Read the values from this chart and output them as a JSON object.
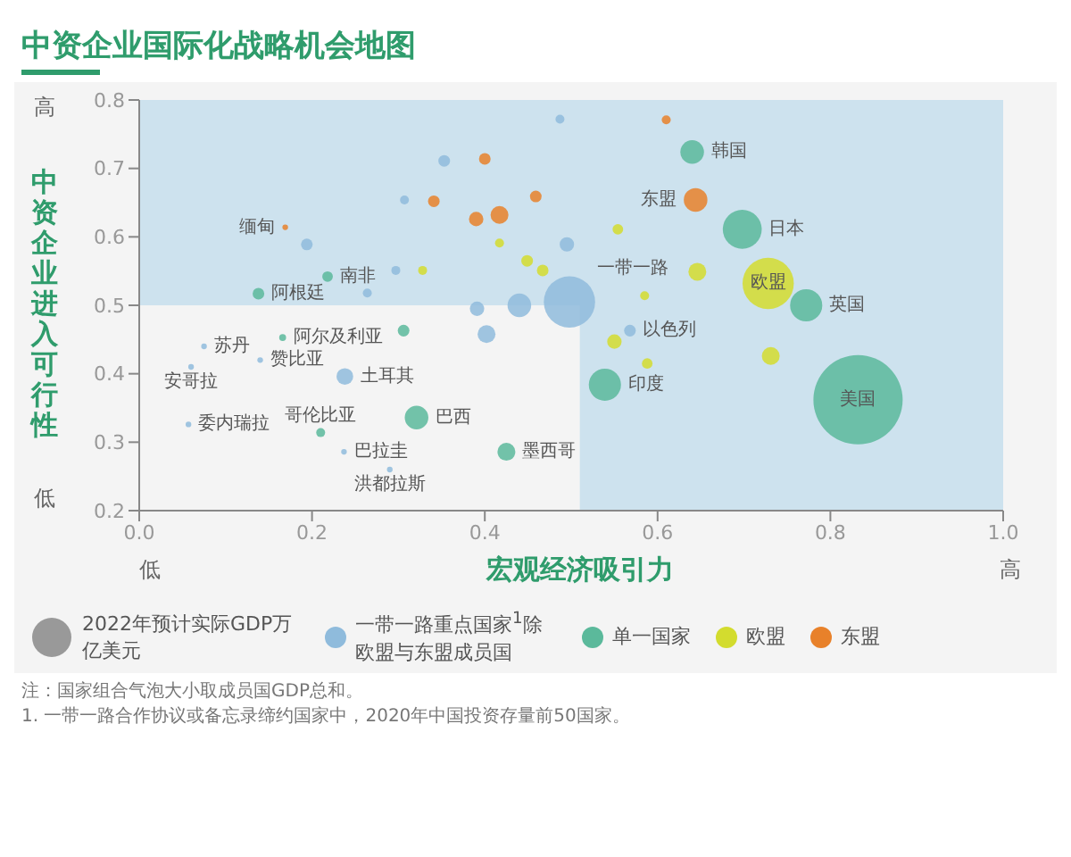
{
  "chart_data": {
    "type": "bubble",
    "title": "中资企业国际化战略机会地图",
    "xlabel": "宏观经济吸引力",
    "ylabel": "中资企业进入可行性",
    "legend_title": "2022年预计实际GDP万亿美元",
    "legend": "bottom",
    "xlim": [
      0,
      1
    ],
    "xticks": [
      {
        "value": 0,
        "label": "0.0"
      },
      0.2,
      0.4,
      0.6,
      0.8,
      {
        "value": 1,
        "label": "1.0"
      }
    ],
    "ylim": [
      0.2,
      0.8
    ],
    "yticks": [
      0.2,
      0.3,
      0.4,
      0.5,
      0.6,
      0.7,
      0.8
    ],
    "grid": false,
    "bands": [
      {
        "axis": "y",
        "from": 0.5,
        "to": 0.8,
        "color": "#cde2ee"
      },
      {
        "axis": "x",
        "from": 0.51,
        "to": 1,
        "color": "#cde2ee"
      }
    ],
    "series": [
      {
        "name": "一带一路重点国家$^{1}$除欧盟与东盟成员国",
        "color": "#8fbbdc",
        "x": [
          0.498,
          0.44,
          0.402,
          0.391,
          0.238,
          0.353,
          0.487,
          0.307,
          0.194,
          0.297,
          0.264,
          0.495,
          0.568,
          0.057,
          0.237,
          0.075,
          0.06,
          0.14,
          0.29
        ],
        "values": [
          0.505,
          0.5,
          0.458,
          0.495,
          0.396,
          0.711,
          0.772,
          0.654,
          0.589,
          0.551,
          0.518,
          0.589,
          0.463,
          0.326,
          0.286,
          0.44,
          0.41,
          0.42,
          0.26
        ],
        "sizes": [
          0.33,
          0.07,
          0.04,
          0.026,
          0.035,
          0.017,
          0.01,
          0.01,
          0.017,
          0.01,
          0.01,
          0.026,
          0.017,
          0.004,
          0.004,
          0.004,
          0.004,
          0.004,
          0.004
        ]
      },
      {
        "name": "单一国家",
        "color": "#5bb99b",
        "x": [
          0.832,
          0.698,
          0.772,
          0.539,
          0.64,
          0.321,
          0.425,
          0.138,
          0.218,
          0.166,
          0.21,
          0.306
        ],
        "values": [
          0.362,
          0.611,
          0.5,
          0.384,
          0.724,
          0.336,
          0.286,
          0.517,
          0.542,
          0.453,
          0.314,
          0.463
        ],
        "sizes": [
          1,
          0.19,
          0.13,
          0.13,
          0.07,
          0.07,
          0.04,
          0.017,
          0.014,
          0.006,
          0.01,
          0.017
        ]
      },
      {
        "name": "欧盟",
        "color": "#d3dc2e",
        "x": [
          0.728,
          0.646,
          0.731,
          0.55,
          0.588,
          0.585,
          0.554,
          0.328,
          0.417,
          0.449,
          0.467
        ],
        "values": [
          0.532,
          0.549,
          0.426,
          0.447,
          0.415,
          0.514,
          0.611,
          0.551,
          0.591,
          0.565,
          0.551
        ],
        "sizes": [
          0.33,
          0.04,
          0.04,
          0.026,
          0.014,
          0.01,
          0.014,
          0.01,
          0.01,
          0.017,
          0.017
        ]
      },
      {
        "name": "东盟",
        "color": "#e8812a",
        "x": [
          0.644,
          0.417,
          0.39,
          0.4,
          0.341,
          0.459,
          0.61,
          0.169
        ],
        "values": [
          0.654,
          0.632,
          0.626,
          0.714,
          0.652,
          0.659,
          0.771,
          0.614
        ],
        "sizes": [
          0.07,
          0.04,
          0.026,
          0.017,
          0.017,
          0.017,
          0.01,
          0.004
        ]
      }
    ],
    "annotations": [
      "高",
      "低",
      "低",
      "高",
      "注：国家组合气泡大小取成员国GDP总和。",
      "1. 一带一路合作协议或备忘录缔约国家中，2020年中国投资存量前50国家。",
      {
        "text": "缅甸",
        "x": 0.169,
        "y": 0.614
      },
      {
        "text": "南非",
        "x": 0.218,
        "y": 0.542
      },
      {
        "text": "阿根廷",
        "x": 0.138,
        "y": 0.517
      },
      {
        "text": "阿尔及利亚",
        "x": 0.166,
        "y": 0.453
      },
      {
        "text": "苏丹",
        "x": 0.075,
        "y": 0.44
      },
      {
        "text": "安哥拉",
        "x": 0.06,
        "y": 0.41
      },
      {
        "text": "赞比亚",
        "x": 0.14,
        "y": 0.42
      },
      {
        "text": "土耳其",
        "x": 0.238,
        "y": 0.396
      },
      {
        "text": "委内瑞拉",
        "x": 0.057,
        "y": 0.326
      },
      {
        "text": "哥伦比亚",
        "x": 0.21,
        "y": 0.314
      },
      {
        "text": "巴西",
        "x": 0.321,
        "y": 0.336
      },
      {
        "text": "巴拉圭",
        "x": 0.237,
        "y": 0.286
      },
      {
        "text": "洪都拉斯",
        "x": 0.29,
        "y": 0.26
      },
      {
        "text": "墨西哥",
        "x": 0.425,
        "y": 0.286
      },
      {
        "text": "韩国",
        "x": 0.64,
        "y": 0.724
      },
      {
        "text": "东盟",
        "x": 0.644,
        "y": 0.654
      },
      {
        "text": "日本",
        "x": 0.698,
        "y": 0.611
      },
      {
        "text": "欧盟",
        "x": 0.728,
        "y": 0.532
      },
      {
        "text": "英国",
        "x": 0.772,
        "y": 0.5
      },
      {
        "text": "美国",
        "x": 0.832,
        "y": 0.362
      },
      {
        "text": "印度",
        "x": 0.539,
        "y": 0.384
      },
      {
        "text": "以色列",
        "x": 0.568,
        "y": 0.463
      },
      {
        "text": "一带一路",
        "x": 0.498,
        "y": 0.505
      }
    ]
  }
}
